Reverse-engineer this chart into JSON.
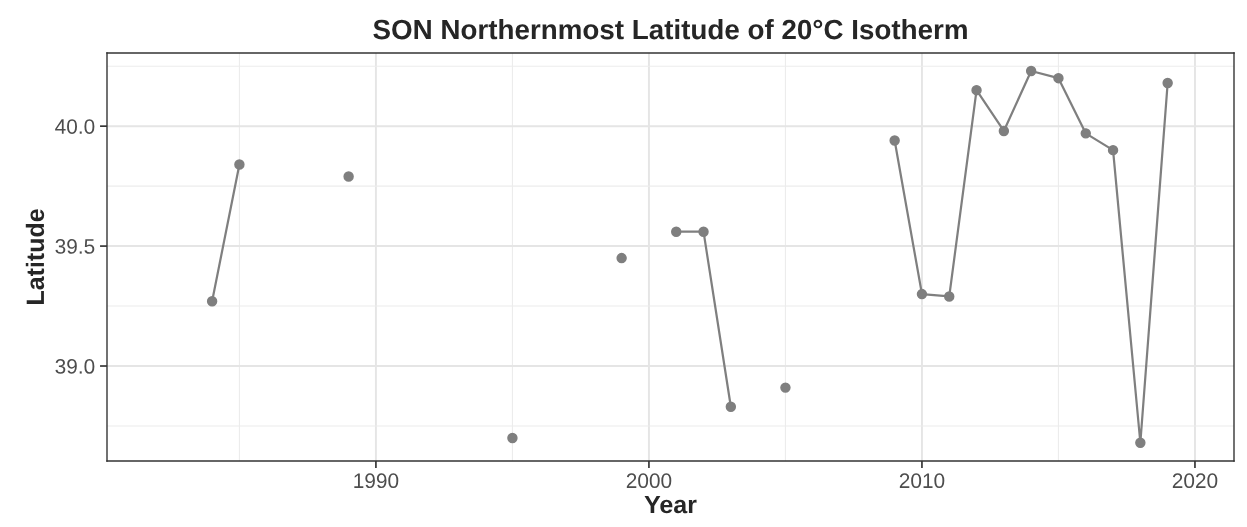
{
  "chart_data": {
    "type": "line",
    "title": "SON Northernmost Latitude of 20°C Isotherm",
    "xlabel": "Year",
    "ylabel": "Latitude",
    "x": [
      1984,
      1985,
      1986,
      1987,
      1988,
      1989,
      1990,
      1991,
      1992,
      1993,
      1994,
      1995,
      1996,
      1997,
      1998,
      1999,
      2000,
      2001,
      2002,
      2003,
      2004,
      2005,
      2006,
      2007,
      2008,
      2009,
      2010,
      2011,
      2012,
      2013,
      2014,
      2015,
      2016,
      2017,
      2018,
      2019
    ],
    "series": [
      {
        "color": "#7f7f7f",
        "values": [
          39.27,
          39.84,
          null,
          null,
          null,
          39.79,
          null,
          null,
          null,
          null,
          null,
          38.7,
          null,
          null,
          null,
          39.45,
          null,
          39.56,
          39.56,
          38.83,
          null,
          38.91,
          null,
          null,
          null,
          39.94,
          39.3,
          39.29,
          40.15,
          39.98,
          40.23,
          40.2,
          39.97,
          39.9,
          38.68,
          40.18
        ]
      }
    ],
    "xlim": [
      1980.15,
      2021.43
    ],
    "ylim": [
      38.604,
      40.305
    ],
    "xticks": [
      1990,
      2000,
      2010,
      2020
    ],
    "yticks": [
      {
        "value": 39.0,
        "label": "39.0"
      },
      {
        "value": 39.5,
        "label": "39.5"
      },
      {
        "value": 40.0,
        "label": "40.0"
      }
    ],
    "grid": true,
    "marker": "circle",
    "line_style": "solid",
    "legend": false
  }
}
